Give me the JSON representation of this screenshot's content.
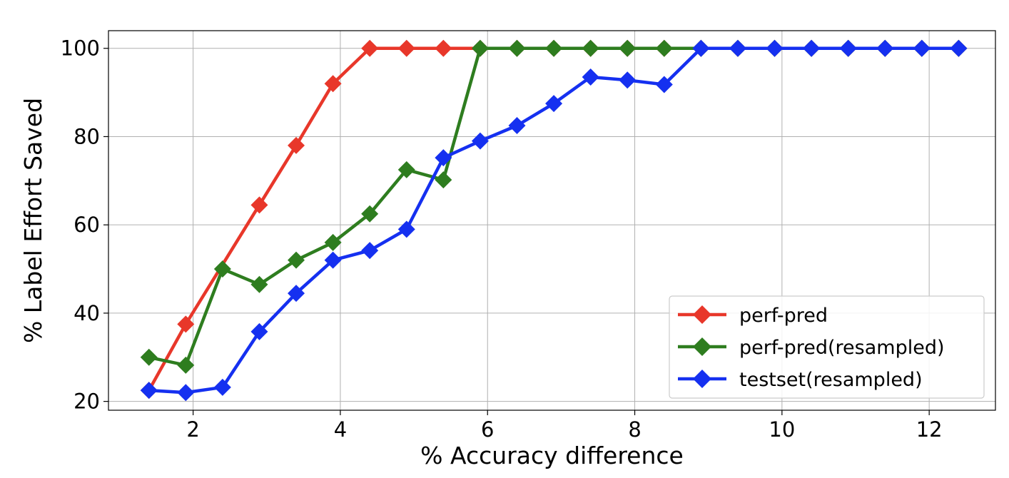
{
  "chart_data": {
    "type": "line",
    "title": "",
    "xlabel": "% Accuracy difference",
    "ylabel": "% Label Effort Saved",
    "xlim": [
      0.85,
      12.9
    ],
    "ylim": [
      18,
      104
    ],
    "xticks": [
      2,
      4,
      6,
      8,
      10,
      12
    ],
    "yticks": [
      20,
      40,
      60,
      80,
      100
    ],
    "grid": true,
    "legend_position": "lower-right",
    "marker": "diamond",
    "series": [
      {
        "name": "perf-pred",
        "color": "#e8372a",
        "x": [
          1.4,
          1.9,
          2.9,
          3.4,
          3.9,
          4.4,
          4.9,
          5.4,
          5.9,
          6.4,
          6.9,
          7.4,
          7.9,
          8.4,
          8.9,
          9.4,
          9.9,
          10.4,
          10.9,
          11.4,
          11.9,
          12.4
        ],
        "y": [
          22.5,
          37.5,
          64.5,
          78,
          92,
          100,
          100,
          100,
          100,
          100,
          100,
          100,
          100,
          100,
          100,
          100,
          100,
          100,
          100,
          100,
          100,
          100
        ]
      },
      {
        "name": "perf-pred(resampled)",
        "color": "#2e7d1f",
        "x": [
          1.4,
          1.9,
          2.4,
          2.9,
          3.4,
          3.9,
          4.4,
          4.9,
          5.4,
          5.9,
          6.4,
          6.9,
          7.4,
          7.9,
          8.4,
          8.9,
          9.4,
          9.9,
          10.4,
          10.9,
          11.4,
          11.9,
          12.4
        ],
        "y": [
          30,
          28.2,
          50,
          46.5,
          52,
          56,
          62.5,
          72.5,
          70.2,
          100,
          100,
          100,
          100,
          100,
          100,
          100,
          100,
          100,
          100,
          100,
          100,
          100,
          100
        ]
      },
      {
        "name": "testset(resampled)",
        "color": "#1530f0",
        "x": [
          1.4,
          1.9,
          2.4,
          2.9,
          3.4,
          3.9,
          4.4,
          4.9,
          5.4,
          5.9,
          6.4,
          6.9,
          7.4,
          7.9,
          8.4,
          8.9,
          9.4,
          9.9,
          10.4,
          10.9,
          11.4,
          11.9,
          12.4
        ],
        "y": [
          22.5,
          22,
          23.2,
          35.8,
          44.5,
          52,
          54.2,
          59,
          75.2,
          79,
          82.5,
          87.5,
          93.5,
          92.8,
          91.8,
          100,
          100,
          100,
          100,
          100,
          100,
          100,
          100
        ]
      }
    ]
  }
}
